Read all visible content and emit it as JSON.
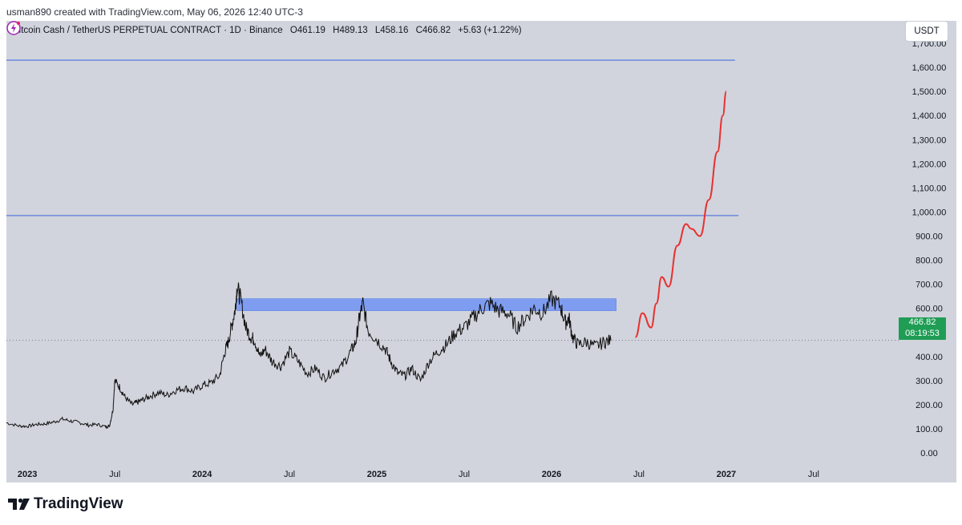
{
  "attribution": "usman890 created with TradingView.com, May 06, 2026 12:40 UTC-3",
  "header": {
    "symbol": "Bitcoin Cash / TetherUS PERPETUAL CONTRACT · 1D · Binance",
    "open": "O461.19",
    "high": "H489.13",
    "low": "L458.16",
    "close": "C466.82",
    "change": "+5.63 (+1.22%)"
  },
  "currency_button": "USDT",
  "price_tag": {
    "price": "466.82",
    "countdown": "08:19:53"
  },
  "brand": "TradingView",
  "colors": {
    "background": "#d1d4dc",
    "candle": "#111111",
    "zone": "#7f9df0",
    "level_line": "#4a6fe0",
    "projection": "#e83030",
    "last_price": "#1f9d55"
  },
  "icons": [
    "tradingview-logo-icon",
    "lightning-icon"
  ],
  "chart_data": {
    "type": "line",
    "title": "Bitcoin Cash / TetherUS PERPETUAL CONTRACT · 1D · Binance",
    "y_ticks": [
      0,
      100,
      200,
      300,
      400,
      500,
      600,
      700,
      800,
      900,
      1000,
      1100,
      1200,
      1300,
      1400,
      1500,
      1600,
      1700
    ],
    "y_tick_labels": [
      "0.00",
      "100.00",
      "200.00",
      "300.00",
      "400.00",
      "500.00",
      "600.00",
      "700.00",
      "800.00",
      "900.00",
      "1,000.00",
      "1,100.00",
      "1,200.00",
      "1,300.00",
      "1,400.00",
      "1,500.00",
      "1,600.00",
      "1,700.00"
    ],
    "ylim": [
      -30,
      1760
    ],
    "x_ticks": [
      {
        "t": 2023.0,
        "label": "2023",
        "bold": true
      },
      {
        "t": 2023.5,
        "label": "Jul",
        "bold": false
      },
      {
        "t": 2024.0,
        "label": "2024",
        "bold": true
      },
      {
        "t": 2024.5,
        "label": "Jul",
        "bold": false
      },
      {
        "t": 2025.0,
        "label": "2025",
        "bold": true
      },
      {
        "t": 2025.5,
        "label": "Jul",
        "bold": false
      },
      {
        "t": 2026.0,
        "label": "2026",
        "bold": true
      },
      {
        "t": 2026.5,
        "label": "Jul",
        "bold": false
      },
      {
        "t": 2027.0,
        "label": "2027",
        "bold": true
      },
      {
        "t": 2027.5,
        "label": "Jul",
        "bold": false
      }
    ],
    "xlim": [
      2022.88,
      2027.95
    ],
    "price_series": {
      "name": "BCHUSDT",
      "x": [
        2022.88,
        2022.95,
        2023.0,
        2023.05,
        2023.1,
        2023.15,
        2023.2,
        2023.25,
        2023.3,
        2023.35,
        2023.4,
        2023.45,
        2023.47,
        2023.49,
        2023.5,
        2023.53,
        2023.56,
        2023.6,
        2023.63,
        2023.66,
        2023.7,
        2023.75,
        2023.8,
        2023.85,
        2023.9,
        2023.95,
        2024.0,
        2024.05,
        2024.1,
        2024.13,
        2024.15,
        2024.17,
        2024.19,
        2024.2,
        2024.22,
        2024.25,
        2024.28,
        2024.3,
        2024.33,
        2024.36,
        2024.4,
        2024.45,
        2024.5,
        2024.55,
        2024.6,
        2024.65,
        2024.7,
        2024.75,
        2024.8,
        2024.85,
        2024.88,
        2024.9,
        2024.92,
        2024.95,
        2025.0,
        2025.05,
        2025.08,
        2025.12,
        2025.16,
        2025.2,
        2025.25,
        2025.3,
        2025.35,
        2025.4,
        2025.45,
        2025.5,
        2025.55,
        2025.6,
        2025.65,
        2025.7,
        2025.75,
        2025.8,
        2025.85,
        2025.9,
        2025.95,
        2026.0,
        2026.05,
        2026.08,
        2026.1,
        2026.12,
        2026.15,
        2026.2,
        2026.25,
        2026.3,
        2026.34
      ],
      "y": [
        125,
        112,
        110,
        118,
        120,
        128,
        140,
        132,
        125,
        115,
        118,
        108,
        112,
        180,
        300,
        270,
        230,
        200,
        210,
        220,
        235,
        250,
        240,
        260,
        270,
        255,
        280,
        290,
        320,
        420,
        460,
        530,
        600,
        690,
        640,
        520,
        480,
        470,
        400,
        430,
        380,
        360,
        420,
        380,
        330,
        350,
        310,
        340,
        360,
        420,
        460,
        560,
        620,
        510,
        470,
        430,
        380,
        330,
        320,
        350,
        300,
        380,
        420,
        450,
        500,
        520,
        560,
        600,
        620,
        590,
        580,
        520,
        560,
        600,
        580,
        640,
        610,
        540,
        560,
        480,
        450,
        460,
        440,
        460,
        466
      ]
    },
    "zone": {
      "x0": 2024.2,
      "x1": 2026.37,
      "y0": 590,
      "y1": 640
    },
    "level_lines": [
      {
        "y": 1630,
        "x_end": 2027.05
      },
      {
        "y": 985,
        "x_end": 2027.07
      }
    ],
    "projection": {
      "x": [
        2026.48,
        2026.52,
        2026.57,
        2026.6,
        2026.63,
        2026.67,
        2026.72,
        2026.77,
        2026.8,
        2026.85,
        2026.9,
        2026.95,
        2026.98,
        2027.0
      ],
      "y": [
        480,
        580,
        520,
        620,
        730,
        690,
        860,
        950,
        930,
        900,
        1050,
        1250,
        1400,
        1500
      ]
    },
    "current_price_line": {
      "y": 466.82
    }
  }
}
